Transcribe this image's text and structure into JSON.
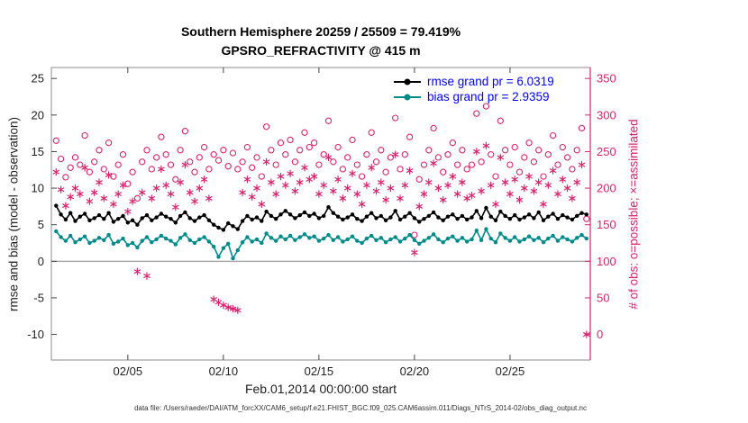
{
  "footer": {
    "caption": "data file: /Users/raeder/DAI/ATM_forcXX/CAM6_setup/f.e21.FHIST_BGC.f09_025.CAM6assim.011/Diags_NTrS_2014-02/obs_diag_output.nc"
  },
  "colors": {
    "rmse": "#000000",
    "bias": "#008b8b",
    "obs": "#d6246e",
    "legend_text": "#0000ff",
    "zero_line": "#a8a8a8",
    "box": "#8c8c8c",
    "tick": "#444444",
    "tick_label": "#1f1f1f"
  },
  "chart_data": {
    "type": "line",
    "title": "Southern Hemisphere 20259 / 25509 = 79.419%",
    "subtitle": "GPSRO_REFRACTIVITY @ 415 m",
    "x_axis": {
      "label": "Feb.01,2014 00:00:00 start",
      "start": 0.25,
      "step": 0.25,
      "lim": [
        0,
        28.2
      ],
      "ticks": [
        {
          "v": 4,
          "label": "02/05"
        },
        {
          "v": 9,
          "label": "02/10"
        },
        {
          "v": 14,
          "label": "02/15"
        },
        {
          "v": 19,
          "label": "02/20"
        },
        {
          "v": 24,
          "label": "02/25"
        }
      ]
    },
    "y_left": {
      "label": "rmse and bias (model - observation)",
      "lim": [
        -13.5,
        26.5
      ],
      "ticks": [
        -10,
        -5,
        0,
        5,
        10,
        15,
        20,
        25
      ]
    },
    "y_right": {
      "label": "# of obs: o=possible; ×=assimilated",
      "lim": [
        -35,
        365
      ],
      "ticks": [
        0,
        50,
        100,
        150,
        200,
        250,
        300,
        350
      ]
    },
    "zero_line": 0,
    "series": [
      {
        "name": "rmse",
        "legend": "rmse grand pr = 6.0319",
        "color": "#000000",
        "axis": "left",
        "style": "line-dot",
        "values": [
          7.6,
          6.4,
          5.7,
          6.6,
          5.5,
          6.1,
          6.5,
          5.6,
          5.9,
          6.3,
          5.8,
          6.6,
          5.4,
          5.8,
          6.2,
          5.3,
          5.6,
          5.0,
          5.9,
          6.3,
          5.6,
          6.0,
          6.5,
          6.1,
          5.8,
          5.3,
          6.2,
          6.7,
          5.9,
          5.5,
          6.0,
          6.3,
          5.6,
          5.0,
          4.6,
          4.3,
          5.2,
          4.8,
          4.4,
          5.5,
          6.2,
          5.7,
          6.0,
          5.5,
          6.8,
          6.2,
          5.8,
          6.4,
          6.9,
          6.4,
          5.9,
          6.3,
          6.7,
          6.2,
          6.5,
          5.9,
          6.2,
          7.4,
          6.6,
          6.1,
          5.7,
          6.0,
          6.4,
          5.8,
          5.5,
          6.1,
          6.6,
          5.9,
          6.2,
          5.6,
          6.0,
          6.9,
          5.7,
          6.1,
          6.6,
          5.9,
          5.4,
          5.8,
          6.2,
          6.7,
          6.0,
          5.6,
          6.1,
          6.4,
          5.8,
          6.2,
          5.7,
          6.0,
          6.9,
          5.9,
          7.3,
          6.1,
          5.6,
          6.8,
          6.2,
          5.8,
          6.3,
          5.7,
          6.0,
          6.4,
          5.9,
          6.7,
          5.6,
          6.1,
          6.5,
          5.8,
          6.3,
          6.0,
          5.7,
          6.2,
          6.6,
          6.4
        ]
      },
      {
        "name": "bias",
        "legend": "bias grand pr = 2.9359",
        "color": "#008b8b",
        "axis": "left",
        "style": "line-dot",
        "values": [
          4.1,
          3.3,
          2.8,
          3.5,
          2.6,
          3.0,
          3.4,
          2.5,
          2.8,
          3.2,
          2.9,
          3.6,
          2.4,
          2.7,
          3.1,
          2.2,
          2.5,
          1.9,
          2.8,
          3.3,
          2.6,
          3.0,
          3.5,
          3.1,
          2.8,
          2.3,
          3.2,
          3.7,
          2.9,
          2.5,
          3.0,
          3.3,
          2.7,
          2.0,
          0.6,
          1.8,
          2.4,
          0.4,
          1.5,
          2.6,
          3.3,
          2.7,
          3.0,
          2.5,
          3.8,
          3.2,
          2.8,
          3.4,
          3.0,
          3.5,
          2.9,
          3.3,
          3.7,
          3.2,
          3.4,
          2.8,
          3.1,
          3.6,
          2.9,
          3.3,
          2.7,
          3.0,
          3.4,
          2.8,
          2.5,
          3.1,
          3.5,
          2.9,
          3.2,
          2.6,
          3.0,
          3.3,
          2.7,
          3.1,
          3.6,
          2.9,
          2.4,
          2.8,
          3.2,
          3.7,
          3.0,
          2.6,
          3.1,
          3.4,
          2.8,
          3.2,
          2.7,
          3.0,
          4.2,
          2.9,
          4.4,
          3.1,
          2.6,
          3.8,
          3.2,
          2.8,
          3.3,
          2.7,
          3.0,
          3.4,
          2.9,
          3.2,
          2.6,
          3.1,
          3.5,
          2.8,
          3.3,
          3.0,
          2.7,
          3.2,
          3.6,
          3.1
        ]
      },
      {
        "name": "possible",
        "legend": "o=possible",
        "color": "#d6246e",
        "axis": "right",
        "style": "scatter-circle",
        "values": [
          265,
          240,
          215,
          228,
          242,
          232,
          272,
          222,
          236,
          252,
          226,
          262,
          216,
          232,
          246,
          206,
          222,
          186,
          236,
          252,
          226,
          242,
          270,
          246,
          232,
          212,
          252,
          278,
          236,
          222,
          242,
          256,
          226,
          246,
          238,
          252,
          230,
          248,
          226,
          236,
          256,
          228,
          242,
          216,
          284,
          252,
          232,
          262,
          246,
          266,
          236,
          252,
          276,
          256,
          262,
          232,
          246,
          292,
          236,
          256,
          226,
          242,
          266,
          232,
          216,
          246,
          276,
          236,
          252,
          222,
          242,
          296,
          226,
          246,
          270,
          136,
          212,
          232,
          252,
          282,
          242,
          222,
          246,
          262,
          232,
          252,
          226,
          232,
          302,
          236,
          312,
          246,
          216,
          292,
          252,
          232,
          256,
          222,
          242,
          262,
          236,
          252,
          216,
          246,
          272,
          232,
          256,
          242,
          226,
          252,
          282,
          158
        ]
      },
      {
        "name": "assimilated",
        "legend": "×=assimilated",
        "color": "#d6246e",
        "axis": "right",
        "style": "scatter-asterisk",
        "values": [
          222,
          198,
          176,
          188,
          200,
          192,
          228,
          182,
          194,
          208,
          186,
          218,
          178,
          192,
          204,
          168,
          182,
          86,
          194,
          80,
          186,
          200,
          226,
          204,
          192,
          174,
          208,
          232,
          194,
          182,
          200,
          212,
          186,
          48,
          44,
          40,
          37,
          35,
          33,
          194,
          212,
          188,
          200,
          178,
          236,
          208,
          192,
          216,
          204,
          220,
          196,
          208,
          228,
          212,
          216,
          192,
          204,
          242,
          196,
          212,
          186,
          200,
          220,
          192,
          178,
          204,
          228,
          196,
          208,
          184,
          200,
          246,
          186,
          204,
          224,
          112,
          175,
          192,
          208,
          234,
          200,
          184,
          204,
          216,
          192,
          208,
          186,
          190,
          250,
          196,
          258,
          204,
          178,
          242,
          208,
          192,
          212,
          184,
          200,
          216,
          196,
          208,
          178,
          204,
          224,
          192,
          212,
          200,
          186,
          208,
          232,
          0
        ]
      }
    ]
  }
}
